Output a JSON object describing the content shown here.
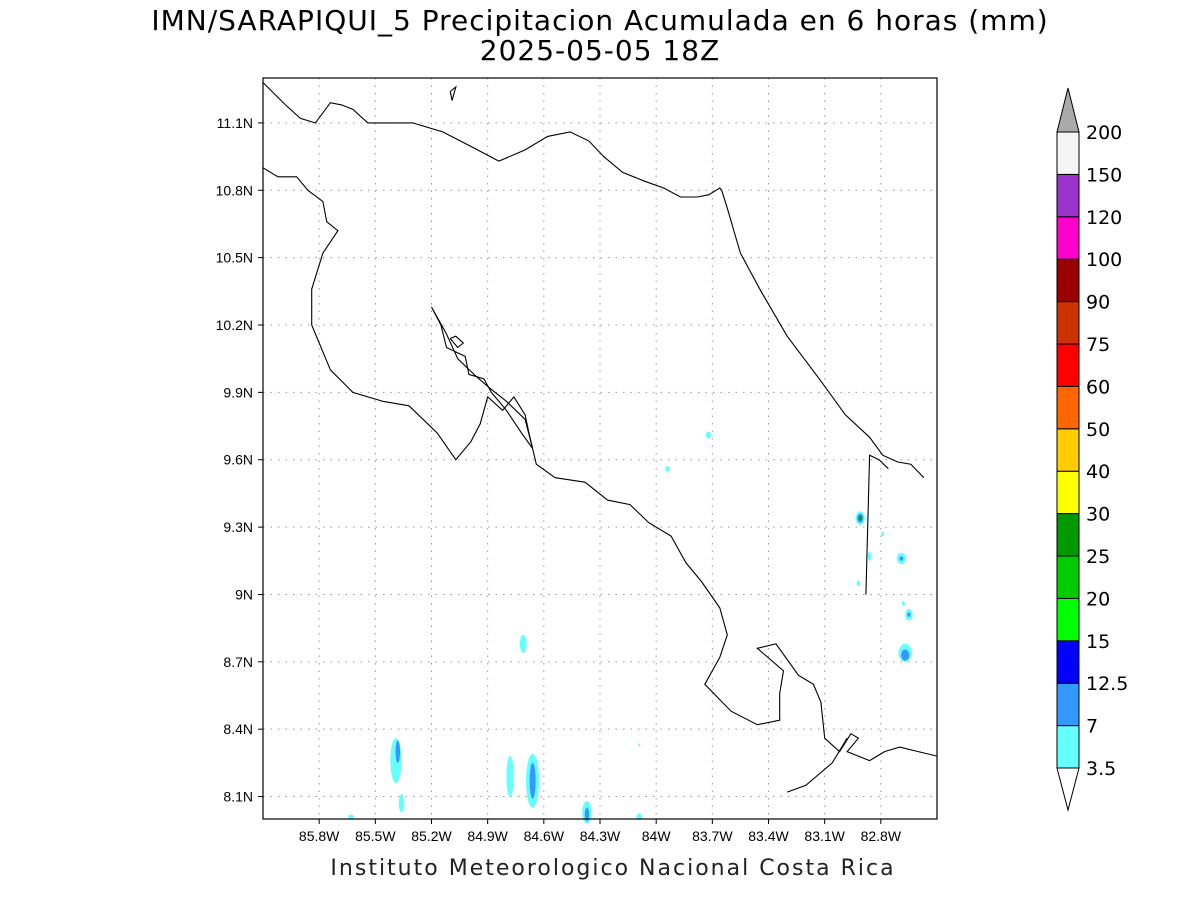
{
  "title": {
    "line1": "IMN/SARAPIQUI_5 Precipitacion Acumulada en 6 horas (mm)",
    "line2": "2025-05-05 18Z"
  },
  "footer": "Instituto Meteorologico Nacional Costa Rica",
  "map": {
    "lon_range": [
      -86.1,
      -82.5
    ],
    "lat_range": [
      8.0,
      11.3
    ],
    "lon_ticks": [
      {
        "value": -85.8,
        "label": "85.8W"
      },
      {
        "value": -85.5,
        "label": "85.5W"
      },
      {
        "value": -85.2,
        "label": "85.2W"
      },
      {
        "value": -84.9,
        "label": "84.9W"
      },
      {
        "value": -84.6,
        "label": "84.6W"
      },
      {
        "value": -84.3,
        "label": "84.3W"
      },
      {
        "value": -84.0,
        "label": "84W"
      },
      {
        "value": -83.7,
        "label": "83.7W"
      },
      {
        "value": -83.4,
        "label": "83.4W"
      },
      {
        "value": -83.1,
        "label": "83.1W"
      },
      {
        "value": -82.8,
        "label": "82.8W"
      }
    ],
    "lat_ticks": [
      {
        "value": 8.1,
        "label": "8.1N"
      },
      {
        "value": 8.4,
        "label": "8.4N"
      },
      {
        "value": 8.7,
        "label": "8.7N"
      },
      {
        "value": 9.0,
        "label": "9N"
      },
      {
        "value": 9.3,
        "label": "9.3N"
      },
      {
        "value": 9.6,
        "label": "9.6N"
      },
      {
        "value": 9.9,
        "label": "9.9N"
      },
      {
        "value": 10.2,
        "label": "10.2N"
      },
      {
        "value": 10.5,
        "label": "10.5N"
      },
      {
        "value": 10.8,
        "label": "10.8N"
      },
      {
        "value": 11.1,
        "label": "11.1N"
      }
    ],
    "grid": true
  },
  "colorbar": {
    "levels": [
      "3.5",
      "7",
      "12.5",
      "15",
      "20",
      "25",
      "30",
      "40",
      "50",
      "60",
      "75",
      "90",
      "100",
      "120",
      "150",
      "200"
    ],
    "colors": [
      "#66ffff",
      "#3399ff",
      "#0000ff",
      "#00ff00",
      "#00cc00",
      "#009900",
      "#ffff00",
      "#ffcc00",
      "#ff6600",
      "#ff0000",
      "#cc3300",
      "#990000",
      "#ff00cc",
      "#9933cc",
      "#f5f5f5"
    ],
    "over_color": "#aaaaaa",
    "under_color": "#ffffff"
  },
  "precip_cells": [
    {
      "lon": -83.72,
      "lat": 9.71,
      "rx": 0.015,
      "ry": 0.015,
      "class": 0
    },
    {
      "lon": -83.94,
      "lat": 9.56,
      "rx": 0.012,
      "ry": 0.012,
      "class": 0
    },
    {
      "lon": -82.91,
      "lat": 9.34,
      "rx": 0.025,
      "ry": 0.03,
      "class": 0
    },
    {
      "lon": -82.91,
      "lat": 9.34,
      "rx": 0.016,
      "ry": 0.02,
      "class": 1
    },
    {
      "lon": -82.91,
      "lat": 9.34,
      "rx": 0.007,
      "ry": 0.01,
      "class": 5
    },
    {
      "lon": -82.86,
      "lat": 9.17,
      "rx": 0.01,
      "ry": 0.02,
      "class": 0
    },
    {
      "lon": -82.92,
      "lat": 9.05,
      "rx": 0.01,
      "ry": 0.012,
      "class": 0
    },
    {
      "lon": -82.69,
      "lat": 9.16,
      "rx": 0.025,
      "ry": 0.025,
      "class": 0
    },
    {
      "lon": -82.69,
      "lat": 9.16,
      "rx": 0.01,
      "ry": 0.01,
      "class": 1
    },
    {
      "lon": -82.79,
      "lat": 9.27,
      "rx": 0.008,
      "ry": 0.01,
      "class": 0
    },
    {
      "lon": -82.65,
      "lat": 8.91,
      "rx": 0.02,
      "ry": 0.025,
      "class": 0
    },
    {
      "lon": -82.65,
      "lat": 8.91,
      "rx": 0.008,
      "ry": 0.01,
      "class": 1
    },
    {
      "lon": -82.68,
      "lat": 8.96,
      "rx": 0.008,
      "ry": 0.01,
      "class": 0
    },
    {
      "lon": -82.67,
      "lat": 8.74,
      "rx": 0.035,
      "ry": 0.04,
      "class": 0
    },
    {
      "lon": -82.67,
      "lat": 8.73,
      "rx": 0.022,
      "ry": 0.025,
      "class": 1
    },
    {
      "lon": -84.71,
      "lat": 8.78,
      "rx": 0.018,
      "ry": 0.04,
      "class": 0
    },
    {
      "lon": -85.39,
      "lat": 8.26,
      "rx": 0.03,
      "ry": 0.1,
      "class": 0
    },
    {
      "lon": -85.38,
      "lat": 8.3,
      "rx": 0.012,
      "ry": 0.05,
      "class": 1
    },
    {
      "lon": -85.36,
      "lat": 8.07,
      "rx": 0.015,
      "ry": 0.04,
      "class": 0
    },
    {
      "lon": -84.78,
      "lat": 8.19,
      "rx": 0.02,
      "ry": 0.09,
      "class": 0
    },
    {
      "lon": -84.66,
      "lat": 8.17,
      "rx": 0.035,
      "ry": 0.12,
      "class": 0
    },
    {
      "lon": -84.66,
      "lat": 8.17,
      "rx": 0.016,
      "ry": 0.08,
      "class": 1
    },
    {
      "lon": -84.37,
      "lat": 8.03,
      "rx": 0.025,
      "ry": 0.05,
      "class": 0
    },
    {
      "lon": -84.37,
      "lat": 8.02,
      "rx": 0.012,
      "ry": 0.03,
      "class": 1
    },
    {
      "lon": -84.09,
      "lat": 8.01,
      "rx": 0.015,
      "ry": 0.015,
      "class": 0
    },
    {
      "lon": -85.63,
      "lat": 8.01,
      "rx": 0.015,
      "ry": 0.01,
      "class": 0
    },
    {
      "lon": -84.09,
      "lat": 8.33,
      "rx": 0.006,
      "ry": 0.006,
      "class": 0
    }
  ],
  "coastlines": [
    [
      [
        -86.1,
        11.28
      ],
      [
        -85.98,
        11.18
      ],
      [
        -85.9,
        11.12
      ],
      [
        -85.82,
        11.1
      ],
      [
        -85.74,
        11.19
      ],
      [
        -85.68,
        11.18
      ],
      [
        -85.62,
        11.16
      ],
      [
        -85.54,
        11.1
      ],
      [
        -85.44,
        11.1
      ],
      [
        -85.3,
        11.1
      ],
      [
        -85.14,
        11.06
      ],
      [
        -85.0,
        11.0
      ],
      [
        -84.84,
        10.93
      ],
      [
        -84.7,
        10.98
      ],
      [
        -84.58,
        11.04
      ],
      [
        -84.46,
        11.06
      ],
      [
        -84.36,
        11.02
      ],
      [
        -84.28,
        10.95
      ],
      [
        -84.18,
        10.88
      ],
      [
        -84.06,
        10.84
      ],
      [
        -83.96,
        10.81
      ],
      [
        -83.87,
        10.77
      ],
      [
        -83.78,
        10.77
      ],
      [
        -83.72,
        10.78
      ],
      [
        -83.68,
        10.8
      ],
      [
        -83.66,
        10.81
      ],
      [
        -83.65,
        10.8
      ],
      [
        -83.62,
        10.72
      ],
      [
        -83.55,
        10.52
      ],
      [
        -83.44,
        10.35
      ],
      [
        -83.3,
        10.15
      ],
      [
        -83.12,
        9.95
      ],
      [
        -82.99,
        9.8
      ],
      [
        -82.86,
        9.7
      ],
      [
        -82.79,
        9.62
      ],
      [
        -82.71,
        9.59
      ],
      [
        -82.64,
        9.58
      ],
      [
        -82.57,
        9.52
      ]
    ],
    [
      [
        -86.1,
        10.9
      ],
      [
        -86.02,
        10.86
      ],
      [
        -85.92,
        10.86
      ],
      [
        -85.86,
        10.8
      ],
      [
        -85.78,
        10.75
      ],
      [
        -85.76,
        10.66
      ],
      [
        -85.7,
        10.62
      ],
      [
        -85.78,
        10.52
      ],
      [
        -85.84,
        10.36
      ],
      [
        -85.84,
        10.2
      ],
      [
        -85.74,
        10.0
      ],
      [
        -85.62,
        9.9
      ],
      [
        -85.46,
        9.86
      ],
      [
        -85.32,
        9.84
      ],
      [
        -85.17,
        9.72
      ],
      [
        -85.07,
        9.6
      ],
      [
        -84.99,
        9.68
      ],
      [
        -84.94,
        9.76
      ],
      [
        -84.9,
        9.88
      ],
      [
        -84.82,
        9.82
      ],
      [
        -84.76,
        9.88
      ],
      [
        -84.7,
        9.8
      ],
      [
        -84.68,
        9.72
      ],
      [
        -84.64,
        9.58
      ],
      [
        -84.54,
        9.52
      ],
      [
        -84.38,
        9.5
      ],
      [
        -84.26,
        9.42
      ],
      [
        -84.14,
        9.4
      ],
      [
        -84.04,
        9.32
      ],
      [
        -83.92,
        9.26
      ],
      [
        -83.84,
        9.14
      ],
      [
        -83.76,
        9.06
      ],
      [
        -83.66,
        8.94
      ],
      [
        -83.62,
        8.82
      ],
      [
        -83.66,
        8.72
      ],
      [
        -83.74,
        8.6
      ],
      [
        -83.6,
        8.48
      ],
      [
        -83.46,
        8.42
      ],
      [
        -83.34,
        8.44
      ],
      [
        -83.34,
        8.56
      ],
      [
        -83.32,
        8.66
      ],
      [
        -83.46,
        8.76
      ],
      [
        -83.36,
        8.78
      ],
      [
        -83.24,
        8.64
      ],
      [
        -83.16,
        8.6
      ],
      [
        -83.12,
        8.52
      ],
      [
        -83.1,
        8.36
      ],
      [
        -83.02,
        8.3
      ],
      [
        -82.96,
        8.38
      ],
      [
        -82.92,
        8.36
      ],
      [
        -82.98,
        8.3
      ],
      [
        -82.86,
        8.26
      ],
      [
        -82.78,
        8.3
      ],
      [
        -82.7,
        8.32
      ],
      [
        -82.6,
        8.3
      ],
      [
        -82.5,
        8.28
      ]
    ],
    [
      [
        -85.2,
        10.28
      ],
      [
        -85.15,
        10.2
      ],
      [
        -85.12,
        10.1
      ],
      [
        -85.02,
        10.06
      ],
      [
        -85.0,
        9.98
      ],
      [
        -84.92,
        9.96
      ],
      [
        -84.88,
        9.9
      ],
      [
        -84.8,
        9.82
      ],
      [
        -84.72,
        9.72
      ],
      [
        -84.66,
        9.65
      ],
      [
        -84.7,
        9.78
      ],
      [
        -84.8,
        9.86
      ],
      [
        -84.89,
        9.92
      ],
      [
        -84.96,
        9.97
      ],
      [
        -85.06,
        10.05
      ],
      [
        -85.12,
        10.16
      ],
      [
        -85.2,
        10.28
      ]
    ],
    [
      [
        -85.1,
        10.14
      ],
      [
        -85.06,
        10.1
      ],
      [
        -85.03,
        10.12
      ],
      [
        -85.07,
        10.15
      ],
      [
        -85.1,
        10.14
      ]
    ],
    [
      [
        -85.1,
        11.24
      ],
      [
        -85.07,
        11.26
      ],
      [
        -85.09,
        11.2
      ],
      [
        -85.1,
        11.24
      ]
    ],
    [
      [
        -82.88,
        9.0
      ],
      [
        -82.86,
        9.62
      ],
      [
        -82.81,
        9.6
      ],
      [
        -82.76,
        9.56
      ]
    ],
    [
      [
        -83.3,
        8.12
      ],
      [
        -83.2,
        8.15
      ],
      [
        -83.06,
        8.25
      ],
      [
        -82.98,
        8.36
      ]
    ]
  ]
}
